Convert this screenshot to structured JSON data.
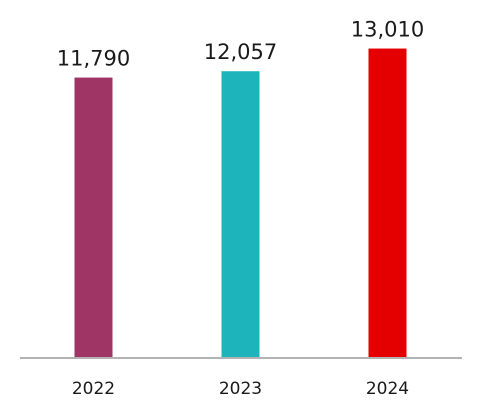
{
  "chart_data": {
    "type": "bar",
    "categories": [
      "2022",
      "2023",
      "2024"
    ],
    "values": [
      11790,
      12057,
      13010
    ],
    "value_labels": [
      "11,790",
      "12,057",
      "13,010"
    ],
    "colors": [
      "#9e3565",
      "#1db5bb",
      "#e50000"
    ],
    "ylim": [
      0,
      14000
    ],
    "grid": false,
    "legend": "none",
    "title": "",
    "xlabel": "",
    "ylabel": ""
  }
}
